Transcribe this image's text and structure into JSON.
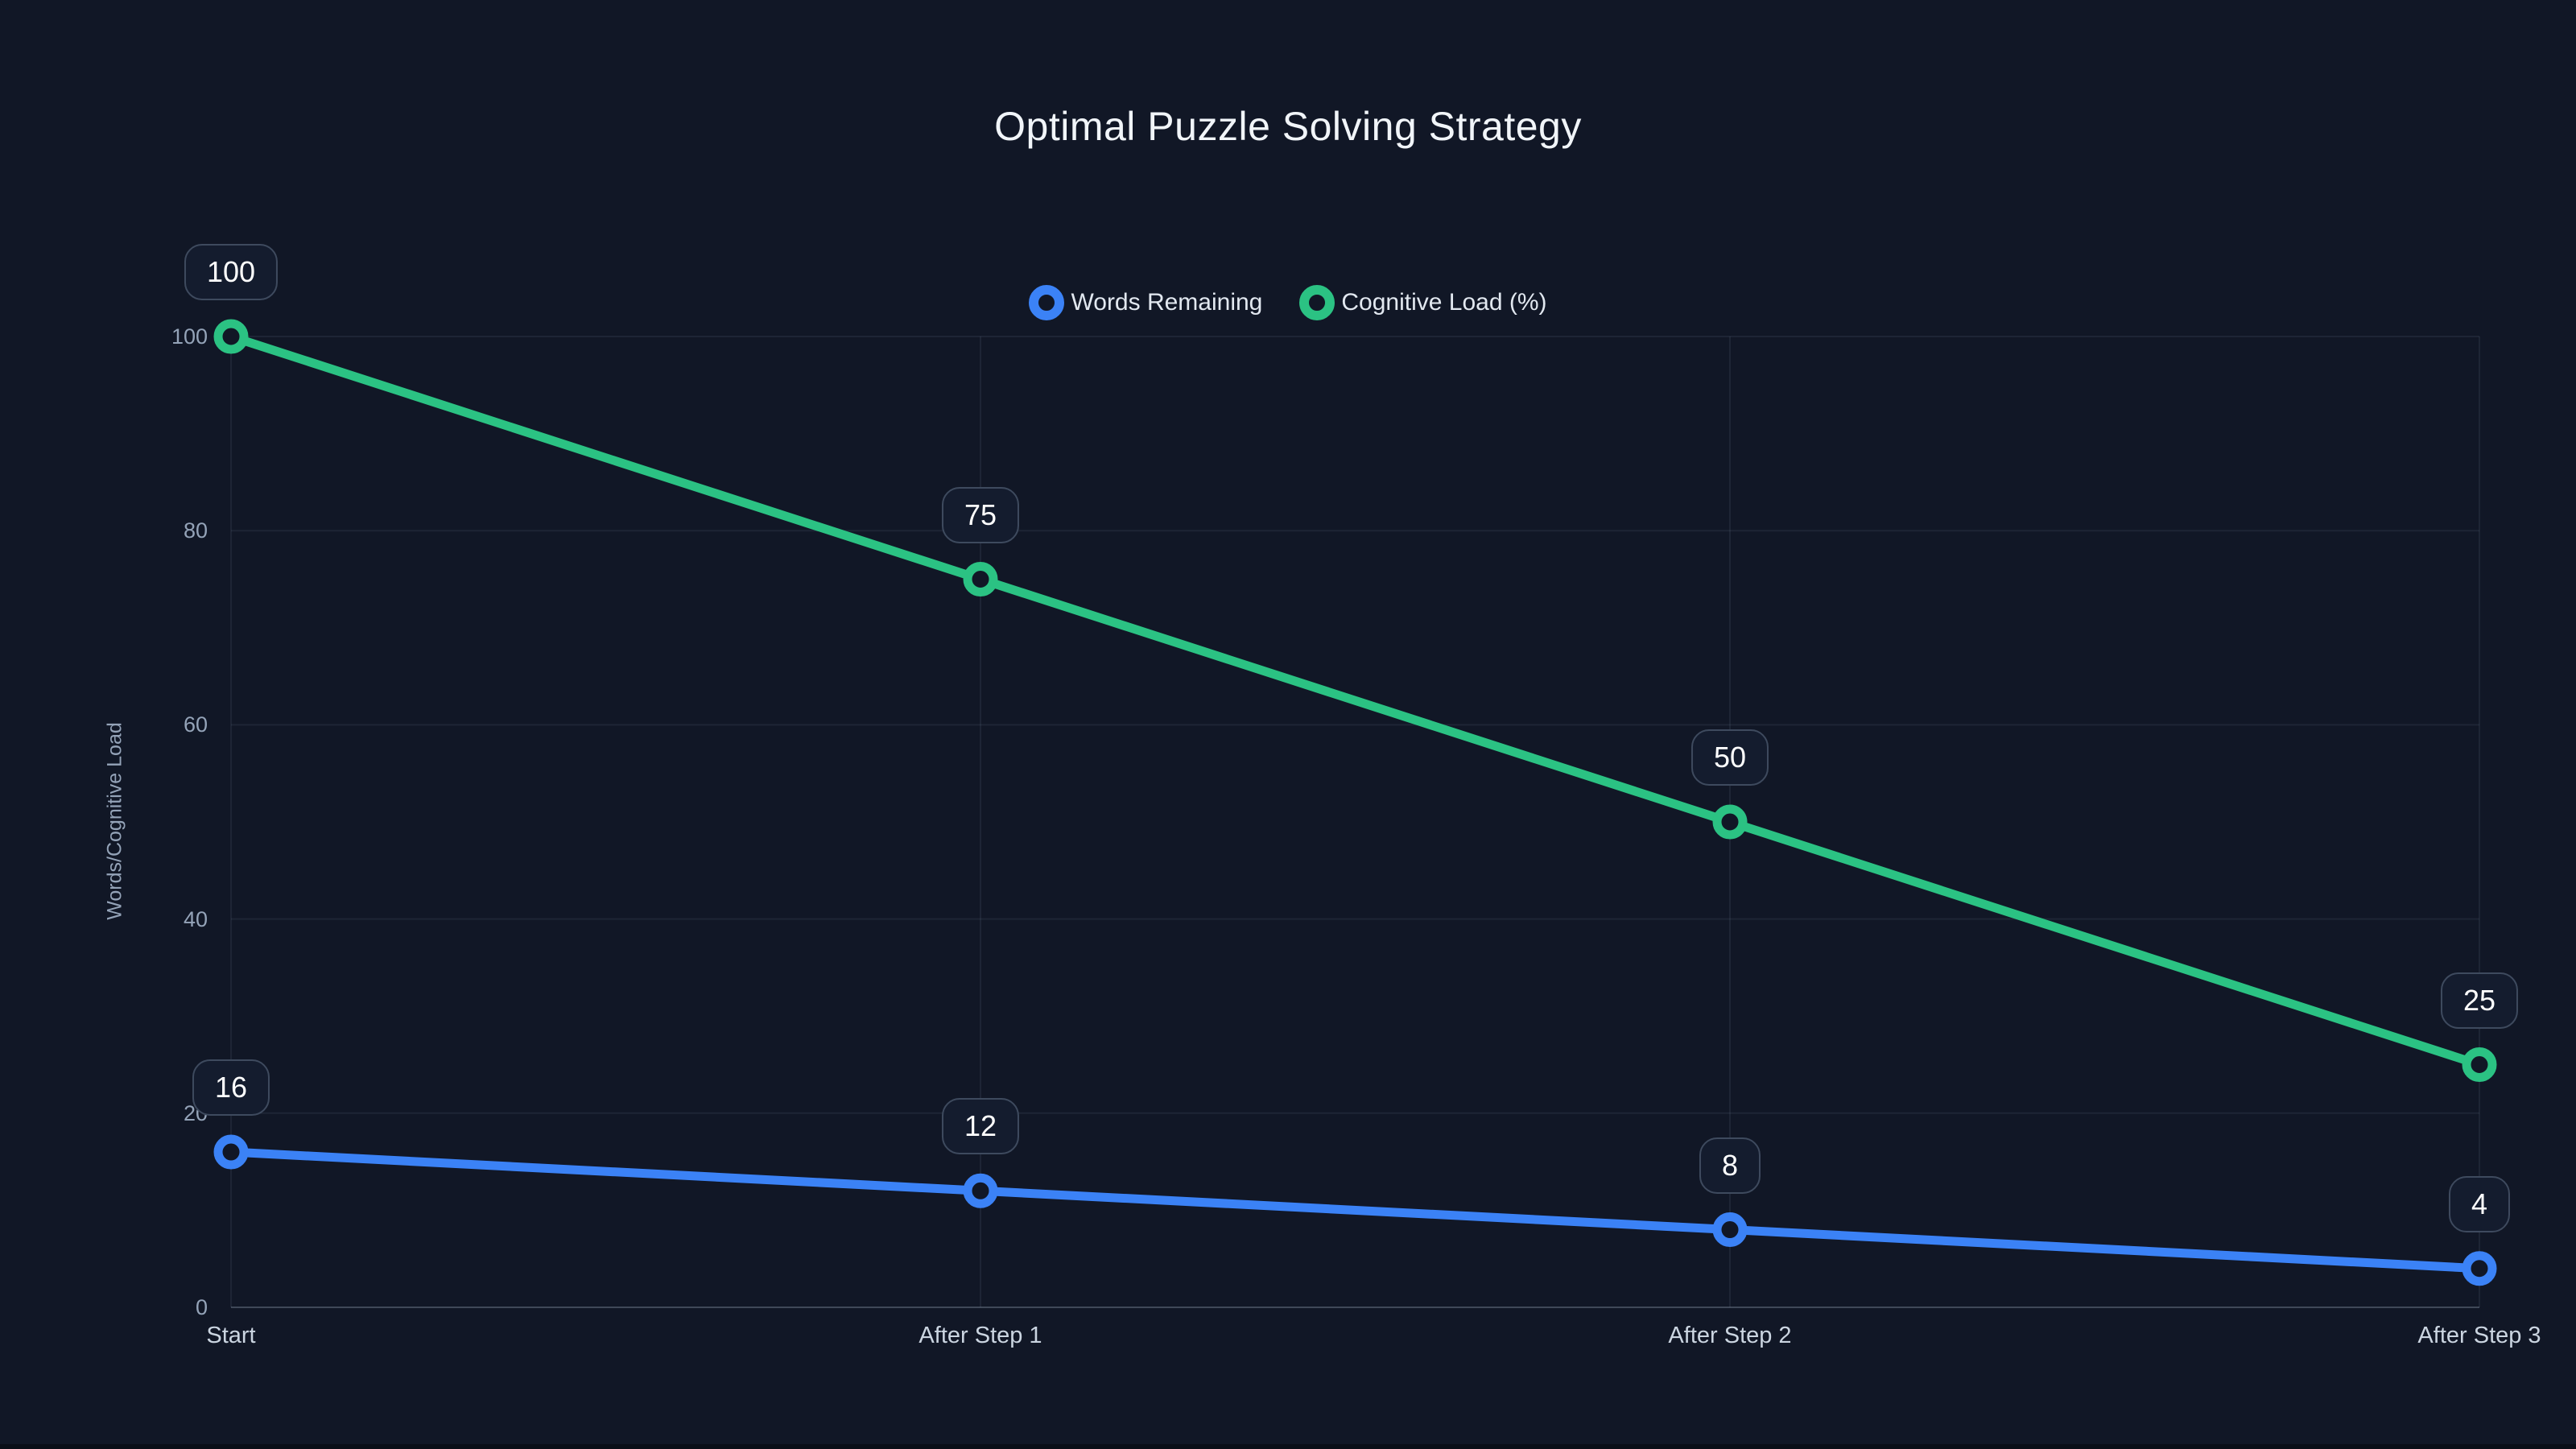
{
  "page": {
    "background": "#111726",
    "bottom_strip_color": "#0a0e17"
  },
  "chart_data": {
    "type": "line",
    "title": "Optimal Puzzle Solving Strategy",
    "categories": [
      "Start",
      "After Step 1",
      "After Step 2",
      "After Step 3"
    ],
    "series": [
      {
        "name": "Words Remaining",
        "color": "#3b82f6",
        "values": [
          16,
          12,
          8,
          4
        ]
      },
      {
        "name": "Cognitive Load (%)",
        "color": "#2bc283",
        "values": [
          100,
          75,
          50,
          25
        ]
      }
    ],
    "xlabel": "",
    "ylabel": "Words/Cognitive Load",
    "yticks": [
      0,
      20,
      40,
      60,
      80,
      100
    ],
    "ylim": [
      0,
      100
    ],
    "grid": true,
    "legend_position": "top-center",
    "point_style": "open-circle",
    "data_labels": "boxed",
    "theme": {
      "grid_color": "rgba(148,163,184,0.10)",
      "axis_line_color": "rgba(148,163,184,0.35)",
      "tick_color": "#94a3b8",
      "x_label_color": "#cbd5e1",
      "title_color": "#f1f5f9",
      "legend_text_color": "#e2e8f0",
      "label_box_bg": "#141c2e",
      "label_box_border": "#3e4a5e",
      "label_box_text": "#ffffff"
    }
  }
}
